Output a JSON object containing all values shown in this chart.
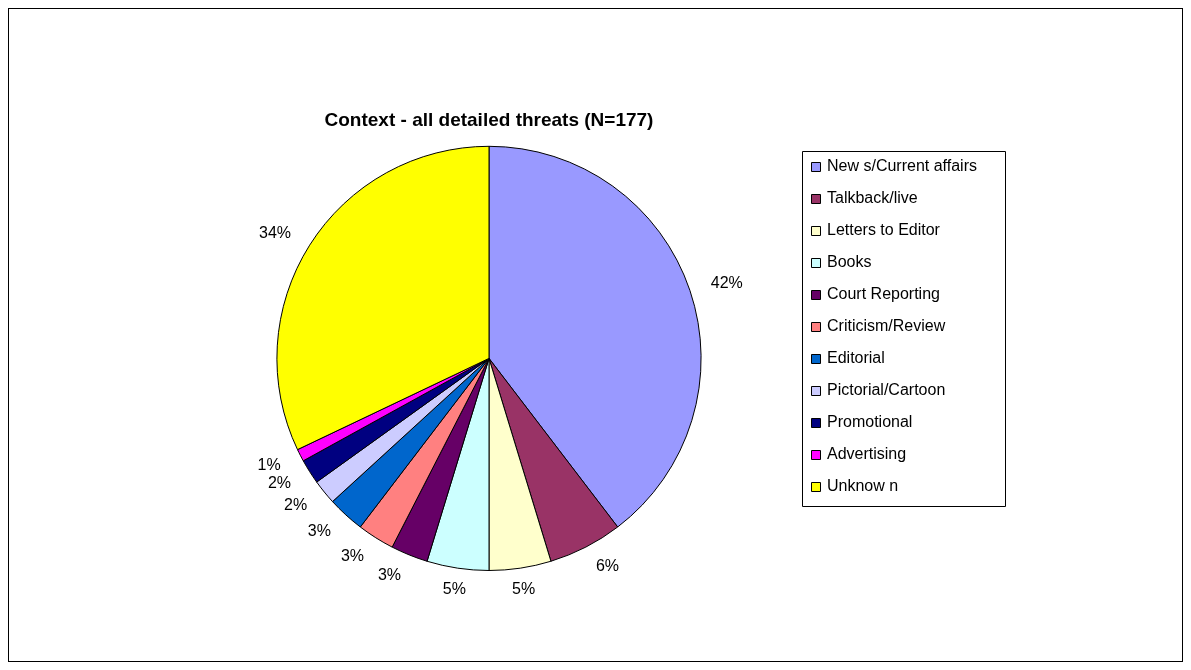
{
  "chart_data": {
    "type": "pie",
    "title": "Context - all detailed threats (N=177)",
    "categories": [
      "New s/Current affairs",
      "Talkback/live",
      "Letters to Editor",
      "Books",
      "Court Reporting",
      "Criticism/Review",
      "Editorial",
      "Pictorial/Cartoon",
      "Promotional",
      "Advertising",
      "Unknow n"
    ],
    "values": [
      42,
      6,
      5,
      5,
      3,
      3,
      3,
      2,
      2,
      1,
      34
    ],
    "value_labels": [
      "42%",
      "6%",
      "5%",
      "5%",
      "3%",
      "3%",
      "3%",
      "2%",
      "2%",
      "1%",
      "34%"
    ],
    "colors": [
      "#9999ff",
      "#993366",
      "#ffffcc",
      "#ccffff",
      "#660066",
      "#ff8080",
      "#0066cc",
      "#ccccff",
      "#000080",
      "#ff00ff",
      "#ffff00"
    ],
    "legend": "right"
  }
}
